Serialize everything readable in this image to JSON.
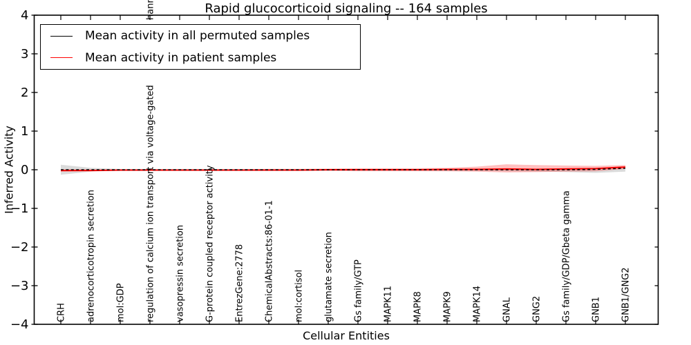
{
  "figure": {
    "title": "Rapid glucocorticoid signaling -- 164 samples",
    "xlabel": "Cellular Entities",
    "ylabel": "Inferred Activity"
  },
  "axes": {
    "ylim": [
      -4,
      4
    ],
    "yticks": [
      4,
      3,
      2,
      1,
      0,
      -1,
      -2,
      -3,
      -4
    ],
    "ytick_labels": [
      "4",
      "3",
      "2",
      "1",
      "0",
      "−1",
      "−2",
      "−3",
      "−4"
    ],
    "spine_color": "#000000",
    "background": "#ffffff"
  },
  "legend": {
    "position": "upper left",
    "items": [
      {
        "label": "Mean activity in all permuted samples",
        "color": "#000000"
      },
      {
        "label": "Mean activity in patient samples",
        "color": "#ff0000"
      }
    ]
  },
  "chart_data": {
    "type": "line",
    "title": "Rapid glucocorticoid signaling -- 164 samples",
    "xlabel": "Cellular Entities",
    "ylabel": "Inferred Activity",
    "ylim": [
      -4,
      4
    ],
    "grid": false,
    "legend_position": "upper left",
    "categories": [
      "CRH",
      "adrenocorticotropin secretion",
      "mol:GDP",
      "regulation of calcium ion transport via voltage-gated",
      "vasopressin secretion",
      "G-protein coupled receptor activity",
      "EntrezGene:2778",
      "ChemicalAbstracts:86-01-1",
      "mol:cortisol",
      "glutamate secretion",
      "Gs family/GTP",
      "MAPK11",
      "MAPK8",
      "MAPK9",
      "MAPK14",
      "GNAL",
      "GNG2",
      "Gs family/GDP/Gbeta gamma",
      "GNB1",
      "GNB1/GNG2"
    ],
    "category_overflow": {
      "index": 3,
      "fragment": "hann"
    },
    "series": [
      {
        "name": "Mean activity in all permuted samples",
        "color": "#000000",
        "linestyle": "dashed",
        "values": [
          0,
          0,
          0,
          0,
          0,
          0,
          0,
          0,
          0,
          0,
          0,
          0,
          0,
          0,
          0,
          0,
          0,
          0,
          0.01,
          0.04
        ],
        "band_upper": [
          0.13,
          0.05,
          0.02,
          0.02,
          0.02,
          0.02,
          0.02,
          0.02,
          0.02,
          0.02,
          0.02,
          0.02,
          0.02,
          0.02,
          0.03,
          0.03,
          0.03,
          0.04,
          0.05,
          0.08
        ],
        "band_lower": [
          -0.13,
          -0.05,
          -0.02,
          -0.02,
          -0.02,
          -0.02,
          -0.02,
          -0.02,
          -0.02,
          -0.02,
          -0.02,
          -0.02,
          -0.02,
          -0.03,
          -0.03,
          -0.04,
          -0.05,
          -0.06,
          -0.08,
          -0.05
        ],
        "band_color": "rgba(0,0,0,0.14)"
      },
      {
        "name": "Mean activity in patient samples",
        "color": "#ff0000",
        "linestyle": "solid",
        "values": [
          -0.02,
          -0.02,
          -0.01,
          -0.01,
          -0.01,
          -0.01,
          -0.01,
          -0.01,
          -0.01,
          0,
          0,
          0,
          0,
          0.01,
          0.01,
          0.02,
          0.01,
          0.02,
          0.03,
          0.07
        ],
        "band_upper": [
          0.01,
          0.01,
          0.01,
          0.01,
          0.01,
          0.01,
          0.01,
          0.02,
          0.02,
          0.03,
          0.04,
          0.04,
          0.04,
          0.05,
          0.08,
          0.14,
          0.12,
          0.11,
          0.1,
          0.12
        ],
        "band_lower": [
          -0.05,
          -0.04,
          -0.03,
          -0.03,
          -0.03,
          -0.03,
          -0.03,
          -0.03,
          -0.03,
          -0.03,
          -0.04,
          -0.04,
          -0.04,
          -0.04,
          -0.05,
          -0.07,
          -0.06,
          -0.05,
          -0.04,
          0.02
        ],
        "band_color": "rgba(255,0,0,0.25)"
      }
    ]
  }
}
